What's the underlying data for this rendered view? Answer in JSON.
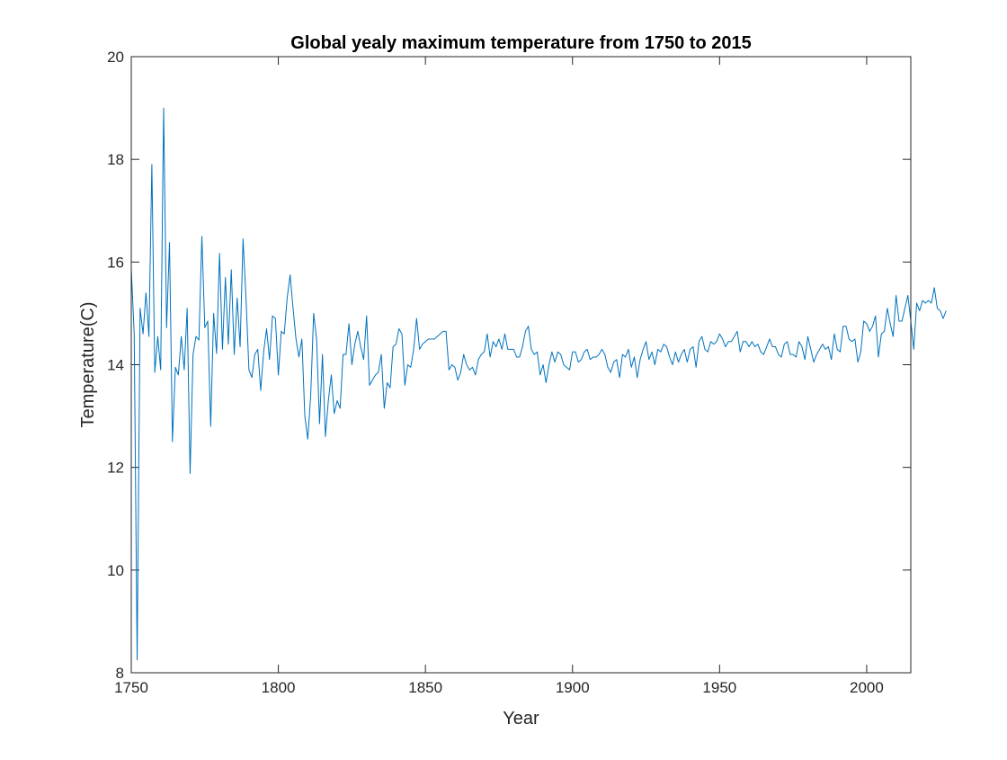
{
  "chart_data": {
    "type": "line",
    "title": "Global yealy maximum temperature from 1750 to 2015",
    "xlabel": "Year",
    "ylabel": "Temperature(C)",
    "xlim": [
      1750,
      2015
    ],
    "ylim": [
      8,
      20
    ],
    "grid": false,
    "x_ticks": [
      1750,
      1800,
      1850,
      1900,
      1950,
      2000
    ],
    "y_ticks": [
      8,
      10,
      12,
      14,
      16,
      18,
      20
    ],
    "line_color": "#0072BD",
    "series": [
      {
        "x_start": 1750,
        "x_step": 1,
        "values": [
          15.87,
          14.6,
          8.25,
          15.1,
          14.6,
          15.4,
          14.55,
          17.9,
          13.85,
          14.55,
          13.9,
          19.0,
          14.72,
          16.38,
          12.5,
          13.95,
          13.8,
          14.55,
          13.9,
          15.1,
          11.88,
          14.2,
          14.55,
          14.48,
          16.5,
          14.72,
          14.85,
          12.8,
          15.0,
          14.22,
          16.17,
          14.3,
          15.7,
          14.4,
          15.85,
          14.2,
          15.3,
          14.35,
          16.45,
          15.3,
          13.9,
          13.75,
          14.2,
          14.3,
          13.5,
          14.25,
          14.7,
          14.1,
          14.95,
          14.9,
          13.8,
          14.65,
          14.6,
          15.3,
          15.75,
          15.1,
          14.5,
          14.15,
          14.5,
          13.0,
          12.55,
          13.4,
          15.0,
          14.5,
          12.85,
          14.2,
          12.6,
          13.3,
          13.8,
          13.05,
          13.3,
          13.15,
          14.2,
          14.2,
          14.8,
          14.0,
          14.4,
          14.65,
          14.35,
          14.1,
          14.95,
          13.6,
          13.7,
          13.8,
          13.85,
          14.2,
          13.15,
          13.65,
          13.55,
          14.35,
          14.4,
          14.7,
          14.6,
          13.6,
          14.0,
          13.95,
          14.3,
          14.9,
          14.3,
          14.4,
          14.45,
          14.5,
          14.5,
          14.5,
          14.55,
          14.6,
          14.65,
          14.65,
          13.9,
          14.0,
          13.95,
          13.7,
          13.85,
          14.2,
          14.0,
          13.9,
          13.95,
          13.8,
          14.1,
          14.2,
          14.25,
          14.6,
          14.15,
          14.45,
          14.35,
          14.5,
          14.3,
          14.6,
          14.3,
          14.3,
          14.3,
          14.15,
          14.15,
          14.35,
          14.65,
          14.75,
          14.3,
          14.2,
          14.25,
          13.8,
          14.0,
          13.65,
          14.0,
          14.25,
          14.05,
          14.25,
          14.2,
          14.0,
          13.95,
          13.9,
          14.25,
          14.25,
          14.05,
          14.1,
          14.25,
          14.3,
          14.1,
          14.15,
          14.15,
          14.2,
          14.3,
          14.2,
          13.95,
          13.85,
          14.05,
          14.1,
          13.75,
          14.2,
          14.15,
          14.3,
          13.95,
          14.15,
          13.75,
          14.1,
          14.3,
          14.45,
          14.1,
          14.25,
          14.0,
          14.3,
          14.25,
          14.4,
          14.35,
          14.15,
          14.0,
          14.25,
          14.05,
          14.2,
          14.3,
          14.05,
          14.3,
          14.35,
          13.95,
          14.45,
          14.55,
          14.3,
          14.25,
          14.45,
          14.4,
          14.45,
          14.6,
          14.5,
          14.35,
          14.45,
          14.45,
          14.55,
          14.65,
          14.25,
          14.45,
          14.45,
          14.35,
          14.45,
          14.35,
          14.4,
          14.25,
          14.2,
          14.35,
          14.5,
          14.35,
          14.35,
          14.2,
          14.15,
          14.4,
          14.45,
          14.2,
          14.2,
          14.15,
          14.45,
          14.35,
          14.1,
          14.55,
          14.3,
          14.05,
          14.2,
          14.3,
          14.4,
          14.3,
          14.35,
          14.1,
          14.6,
          14.3,
          14.25,
          14.75,
          14.75,
          14.5,
          14.45,
          14.5,
          14.05,
          14.25,
          14.85,
          14.8,
          14.65,
          14.75,
          14.95,
          14.15,
          14.6,
          14.65,
          15.1,
          14.8,
          14.55,
          15.35,
          14.85,
          14.85,
          15.1,
          15.35,
          14.85,
          14.3,
          15.2,
          15.05,
          15.25,
          15.2,
          15.25,
          15.2,
          15.5,
          15.1,
          15.05,
          14.9,
          15.05
        ]
      }
    ]
  }
}
